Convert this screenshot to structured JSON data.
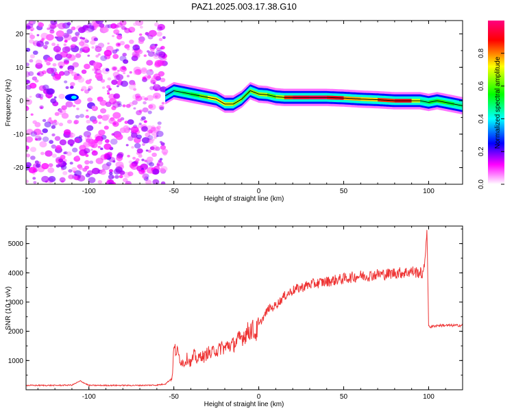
{
  "title": "PAZ1.2025.003.17.38.G10",
  "chart_data": [
    {
      "type": "heatmap",
      "xlabel": "Height of straight line (km)",
      "ylabel": "Frequency (Hz)",
      "xlim": [
        -137,
        120
      ],
      "ylim": [
        -25,
        24
      ],
      "x_ticks": [
        "-100",
        "-50",
        "0",
        "50",
        "100"
      ],
      "y_ticks": [
        "-20",
        "-10",
        "0",
        "10",
        "20"
      ],
      "colorbar": {
        "label": "Normalized spectral amplitude",
        "range": [
          0,
          1
        ],
        "ticks": [
          "0.0",
          "0.2",
          "0.4",
          "0.6",
          "0.8"
        ],
        "colors": [
          "#ffffff",
          "#ff00ff",
          "#0000ff",
          "#00ffff",
          "#00ff00",
          "#ffff00",
          "#ff0000",
          "#ff0080"
        ]
      },
      "ridge": {
        "x": [
          -55,
          -50,
          -45,
          -40,
          -35,
          -30,
          -25,
          -20,
          -15,
          -10,
          -5,
          0,
          5,
          10,
          15,
          20,
          30,
          40,
          50,
          60,
          70,
          80,
          90,
          95,
          100,
          105,
          110,
          115,
          120
        ],
        "freq": [
          1.5,
          3.0,
          2.5,
          2.0,
          1.5,
          1.0,
          0.5,
          -1.0,
          -1.0,
          0.5,
          3.0,
          2.0,
          1.8,
          1.2,
          1.0,
          1.0,
          1.0,
          1.0,
          0.8,
          0.5,
          0.3,
          0.0,
          0.0,
          0.0,
          -0.5,
          0.0,
          -0.5,
          -1.0,
          -1.5
        ],
        "amplitude": [
          0.25,
          0.45,
          0.5,
          0.5,
          0.55,
          0.7,
          0.75,
          0.7,
          0.7,
          0.6,
          0.6,
          0.7,
          0.65,
          0.55,
          0.8,
          0.9,
          0.95,
          0.95,
          0.85,
          0.7,
          0.8,
          0.9,
          0.9,
          0.5,
          0.45,
          0.6,
          0.55,
          0.5,
          0.45
        ]
      },
      "noise_region_x": [
        -137,
        -55
      ],
      "noise_amplitude_range": [
        0.05,
        0.2
      ],
      "ionospheric_feature_at_x": -110
    },
    {
      "type": "line",
      "xlabel": "Height of straight line (km)",
      "ylabel": "SNR (10 * v/v)",
      "xlim": [
        -137,
        120
      ],
      "ylim": [
        0,
        5600
      ],
      "x_ticks": [
        "-100",
        "-50",
        "0",
        "50",
        "100"
      ],
      "y_ticks": [
        "1000",
        "2000",
        "3000",
        "4000",
        "5000"
      ],
      "color": "#ee3333",
      "series": [
        {
          "x": [
            -137,
            -120,
            -110,
            -105,
            -100,
            -90,
            -80,
            -70,
            -60,
            -55,
            -51,
            -50,
            -48,
            -46,
            -44,
            -42,
            -40,
            -38,
            -36,
            -34,
            -32,
            -30,
            -28,
            -26,
            -24,
            -22,
            -20,
            -18,
            -16,
            -14,
            -12,
            -10,
            -8,
            -6,
            -4,
            -2,
            0,
            2,
            4,
            6,
            8,
            10,
            12,
            15,
            20,
            25,
            30,
            35,
            40,
            45,
            50,
            55,
            60,
            65,
            70,
            75,
            80,
            85,
            90,
            95,
            97,
            98,
            99,
            100,
            101,
            105,
            110,
            115,
            120
          ],
          "values": [
            150,
            150,
            160,
            300,
            150,
            150,
            150,
            150,
            160,
            200,
            400,
            1400,
            1300,
            1000,
            900,
            1100,
            900,
            1200,
            1000,
            1200,
            1100,
            1300,
            1200,
            1400,
            1300,
            1500,
            1400,
            1550,
            1500,
            1600,
            1700,
            1800,
            1900,
            2000,
            2100,
            1900,
            2200,
            2400,
            2600,
            2800,
            2800,
            2900,
            3000,
            3200,
            3400,
            3500,
            3600,
            3650,
            3700,
            3750,
            3800,
            3850,
            3900,
            3900,
            3950,
            3950,
            4000,
            4000,
            4050,
            4000,
            3950,
            4600,
            5500,
            2200,
            2150,
            2200,
            2200,
            2200,
            2200
          ]
        }
      ]
    }
  ]
}
